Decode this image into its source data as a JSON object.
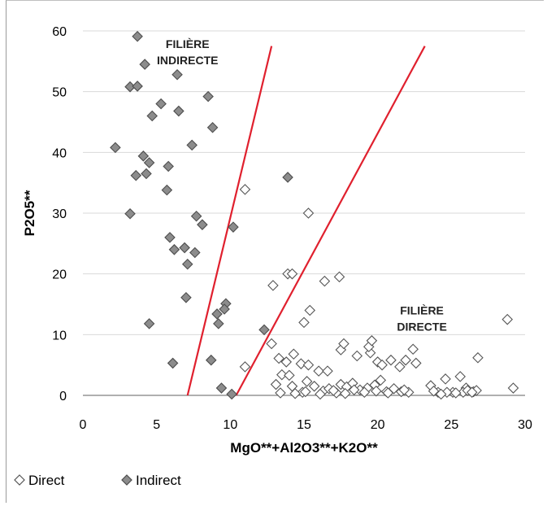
{
  "chart_data": {
    "type": "scatter",
    "xlabel": "MgO**+Al2O3**+K2O**",
    "ylabel": "P2O5**",
    "xlim": [
      0,
      30
    ],
    "ylim": [
      0,
      60
    ],
    "x_ticks": [
      "0",
      "5",
      "10",
      "15",
      "20",
      "25",
      "30"
    ],
    "y_ticks": [
      "0",
      "10",
      "20",
      "30",
      "40",
      "50",
      "60"
    ],
    "grid": "horizontal",
    "legend_position": "bottom-left",
    "annotations": [
      {
        "lines": [
          "FILIÈRE",
          "INDIRECTE"
        ],
        "x": 7.1,
        "y": 57.2
      },
      {
        "lines": [
          "FILIÈRE",
          "DIRECTE"
        ],
        "x": 23.0,
        "y": 13.3
      }
    ],
    "boundary_lines": [
      {
        "x": [
          7.1,
          12.8
        ],
        "y": [
          0,
          57.5
        ],
        "color": "#e0202e"
      },
      {
        "x": [
          10.4,
          23.2
        ],
        "y": [
          0,
          57.5
        ],
        "color": "#e0202e"
      }
    ],
    "series": [
      {
        "name": "Direct",
        "marker": "diamond-open",
        "fill": "#ffffff",
        "stroke": "#555555",
        "x": [
          11.0,
          15.3,
          12.9,
          13.9,
          14.2,
          16.4,
          17.4,
          15.4,
          15.0,
          12.8,
          11.0,
          13.3,
          13.8,
          14.3,
          14.8,
          15.3,
          16.0,
          16.6,
          17.5,
          17.7,
          18.6,
          19.5,
          19.4,
          19.6,
          20.0,
          20.3,
          20.9,
          21.5,
          21.9,
          22.4,
          22.6,
          13.1,
          13.5,
          14.0,
          14.2,
          14.9,
          15.2,
          15.7,
          16.3,
          16.7,
          17.2,
          17.5,
          17.9,
          18.3,
          18.8,
          19.3,
          19.8,
          20.2,
          20.6,
          21.1,
          21.6,
          22.1,
          23.6,
          24.1,
          24.6,
          25.1,
          25.6,
          26.0,
          26.5,
          26.8,
          24.7,
          25.8,
          26.7,
          28.8,
          29.2,
          13.4,
          14.4,
          15.1,
          16.1,
          17.0,
          17.8,
          18.4,
          19.1,
          19.9,
          20.7,
          21.8,
          23.8,
          24.3,
          25.3,
          26.1,
          26.4
        ],
        "y": [
          33.9,
          30.0,
          18.1,
          20.0,
          20.0,
          18.8,
          19.5,
          14.0,
          12.0,
          8.5,
          4.7,
          6.1,
          5.5,
          6.8,
          5.2,
          5.0,
          4.0,
          4.0,
          7.5,
          8.5,
          6.5,
          7.0,
          8.0,
          9.0,
          5.5,
          5.0,
          5.8,
          4.7,
          5.8,
          7.6,
          5.3,
          1.8,
          3.4,
          3.3,
          1.5,
          0.5,
          2.3,
          1.5,
          0.7,
          1.1,
          0.4,
          1.8,
          1.4,
          2.0,
          0.9,
          1.2,
          1.7,
          2.5,
          0.6,
          1.1,
          0.6,
          0.5,
          1.6,
          0.5,
          2.7,
          0.5,
          3.1,
          1.2,
          0.6,
          6.2,
          0.5,
          0.5,
          0.8,
          12.5,
          1.2,
          0.4,
          0.3,
          0.6,
          0.2,
          0.8,
          0.3,
          0.9,
          0.5,
          0.7,
          0.4,
          0.9,
          0.7,
          0.2,
          0.4,
          0.8,
          0.5
        ]
      },
      {
        "name": "Indirect",
        "marker": "diamond",
        "fill": "#8c8c8c",
        "stroke": "#4d4d4d",
        "x": [
          3.7,
          4.2,
          6.4,
          3.2,
          3.7,
          8.5,
          5.3,
          6.5,
          4.7,
          8.8,
          2.2,
          4.1,
          7.4,
          4.5,
          3.6,
          4.3,
          5.8,
          13.9,
          5.7,
          7.7,
          8.1,
          10.2,
          5.9,
          6.2,
          6.9,
          7.1,
          7.6,
          3.2,
          7.0,
          9.7,
          9.6,
          9.1,
          9.2,
          12.3,
          4.5,
          8.7,
          6.1,
          9.4,
          10.1
        ],
        "y": [
          59.1,
          54.5,
          52.8,
          50.8,
          50.9,
          49.2,
          48.0,
          46.8,
          46.0,
          44.1,
          40.8,
          39.4,
          41.2,
          38.3,
          36.2,
          36.5,
          37.7,
          35.9,
          33.8,
          29.5,
          28.1,
          27.7,
          26.0,
          24.0,
          24.3,
          21.6,
          23.5,
          29.9,
          16.1,
          15.1,
          14.2,
          13.4,
          11.8,
          10.8,
          11.8,
          5.8,
          5.3,
          1.2,
          0.2
        ]
      }
    ]
  }
}
